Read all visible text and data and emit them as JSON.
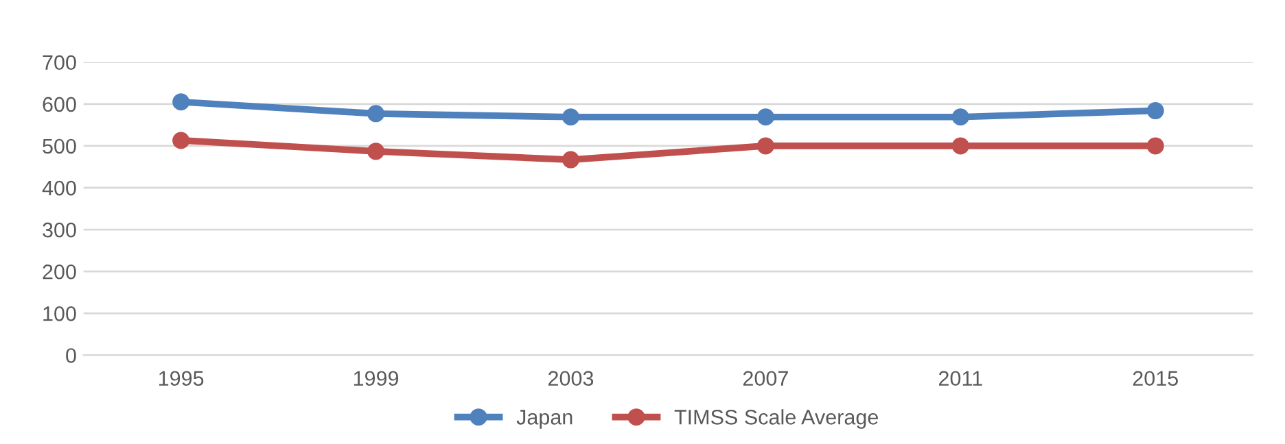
{
  "chart_data": {
    "type": "line",
    "categories": [
      "1995",
      "1999",
      "2003",
      "2007",
      "2011",
      "2015"
    ],
    "series": [
      {
        "name": "Japan",
        "color": "#4f81bd",
        "values": [
          605,
          577,
          569,
          569,
          569,
          584
        ]
      },
      {
        "name": "TIMSS Scale Average",
        "color": "#c0504d",
        "values": [
          513,
          487,
          467,
          500,
          500,
          500
        ]
      }
    ],
    "ylim": [
      0,
      700
    ],
    "yticks": [
      0,
      100,
      200,
      300,
      400,
      500,
      600,
      700
    ],
    "grid": "y",
    "legend": "bottom",
    "marker": "circle",
    "line_style": "solid"
  }
}
